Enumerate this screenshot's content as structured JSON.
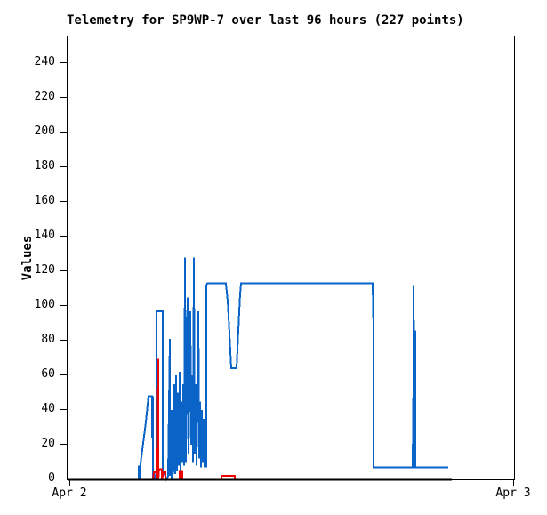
{
  "page": {
    "background": "#ffffff"
  },
  "chart_data": {
    "type": "line",
    "title": "Telemetry for SP9WP-7 over last 96 hours (227 points)",
    "station": "SP9WP-7",
    "window_hours": 96,
    "point_count": 227,
    "ylabel": "Values",
    "xlabel": "",
    "grid": false,
    "legend": "none",
    "yticks": [
      0,
      20,
      40,
      60,
      80,
      100,
      120,
      140,
      160,
      180,
      200,
      220,
      240
    ],
    "ylim": [
      0,
      255.4
    ],
    "xticks": [
      {
        "label": "Apr 2",
        "x": 78
      },
      {
        "label": "Apr 3",
        "x": 577
      }
    ],
    "series": [
      {
        "name": "telemetry-series-blue",
        "color": "#0a64c8",
        "width": 2,
        "points": [
          [
            155,
            8
          ],
          [
            155,
            0
          ],
          [
            156,
            0
          ],
          [
            156,
            5
          ],
          [
            157,
            9
          ],
          [
            158,
            13
          ],
          [
            159,
            17
          ],
          [
            160,
            21
          ],
          [
            161,
            25
          ],
          [
            162,
            29
          ],
          [
            163,
            33
          ],
          [
            164,
            38
          ],
          [
            165,
            43
          ],
          [
            166,
            48
          ],
          [
            170,
            48
          ],
          [
            170,
            24
          ],
          [
            171,
            48
          ],
          [
            171,
            0
          ],
          [
            172,
            5
          ],
          [
            173,
            0
          ],
          [
            175,
            3
          ],
          [
            175,
            97
          ],
          [
            182,
            97
          ],
          [
            182,
            5
          ],
          [
            184,
            3
          ],
          [
            186,
            0
          ],
          [
            188,
            2
          ],
          [
            190,
            81
          ],
          [
            190,
            2
          ],
          [
            192,
            40
          ],
          [
            192,
            0
          ],
          [
            194,
            5
          ],
          [
            195,
            55
          ],
          [
            196,
            3
          ],
          [
            197,
            60
          ],
          [
            198,
            5
          ],
          [
            199,
            50
          ],
          [
            200,
            8
          ],
          [
            201,
            62
          ],
          [
            202,
            5
          ],
          [
            203,
            45
          ],
          [
            204,
            10
          ],
          [
            205,
            55
          ],
          [
            206,
            8
          ],
          [
            207,
            128
          ],
          [
            208,
            10
          ],
          [
            209,
            60
          ],
          [
            210,
            105
          ],
          [
            211,
            15
          ],
          [
            212,
            50
          ],
          [
            213,
            97
          ],
          [
            214,
            20
          ],
          [
            215,
            60
          ],
          [
            216,
            10
          ],
          [
            217,
            128
          ],
          [
            218,
            15
          ],
          [
            219,
            55
          ],
          [
            220,
            8
          ],
          [
            221,
            50
          ],
          [
            222,
            97
          ],
          [
            223,
            12
          ],
          [
            224,
            45
          ],
          [
            225,
            7
          ],
          [
            226,
            40
          ],
          [
            227,
            10
          ],
          [
            228,
            35
          ],
          [
            229,
            7
          ],
          [
            230,
            30
          ],
          [
            231,
            7
          ],
          [
            231,
            112
          ],
          [
            232,
            113
          ],
          [
            253,
            113
          ],
          [
            254,
            108
          ],
          [
            255,
            103
          ],
          [
            256,
            94
          ],
          [
            257,
            84
          ],
          [
            258,
            74
          ],
          [
            259,
            64
          ],
          [
            265,
            64
          ],
          [
            266,
            75
          ],
          [
            267,
            86
          ],
          [
            268,
            97
          ],
          [
            269,
            107
          ],
          [
            270,
            113
          ],
          [
            418,
            113
          ],
          [
            419,
            86
          ],
          [
            419,
            7
          ],
          [
            463,
            7
          ],
          [
            464,
            60
          ],
          [
            464,
            112
          ],
          [
            465,
            33
          ],
          [
            466,
            86
          ],
          [
            466,
            7
          ],
          [
            503,
            7
          ]
        ]
      },
      {
        "name": "telemetry-series-red",
        "color": "#ee0000",
        "width": 2,
        "points": [
          [
            155,
            0
          ],
          [
            171,
            0
          ],
          [
            172,
            4
          ],
          [
            175,
            4
          ],
          [
            175,
            0
          ],
          [
            176,
            69
          ],
          [
            177,
            69
          ],
          [
            177,
            0
          ],
          [
            178,
            6
          ],
          [
            181,
            6
          ],
          [
            181,
            0
          ],
          [
            183,
            4
          ],
          [
            185,
            4
          ],
          [
            185,
            0
          ],
          [
            201,
            0
          ],
          [
            201,
            5
          ],
          [
            204,
            5
          ],
          [
            204,
            0
          ],
          [
            248,
            0
          ],
          [
            248,
            2
          ],
          [
            263,
            2
          ],
          [
            263,
            0
          ],
          [
            503,
            0
          ]
        ]
      },
      {
        "name": "telemetry-series-black",
        "color": "#000000",
        "width": 3,
        "points": [
          [
            76,
            0
          ],
          [
            507,
            0
          ]
        ]
      }
    ]
  }
}
